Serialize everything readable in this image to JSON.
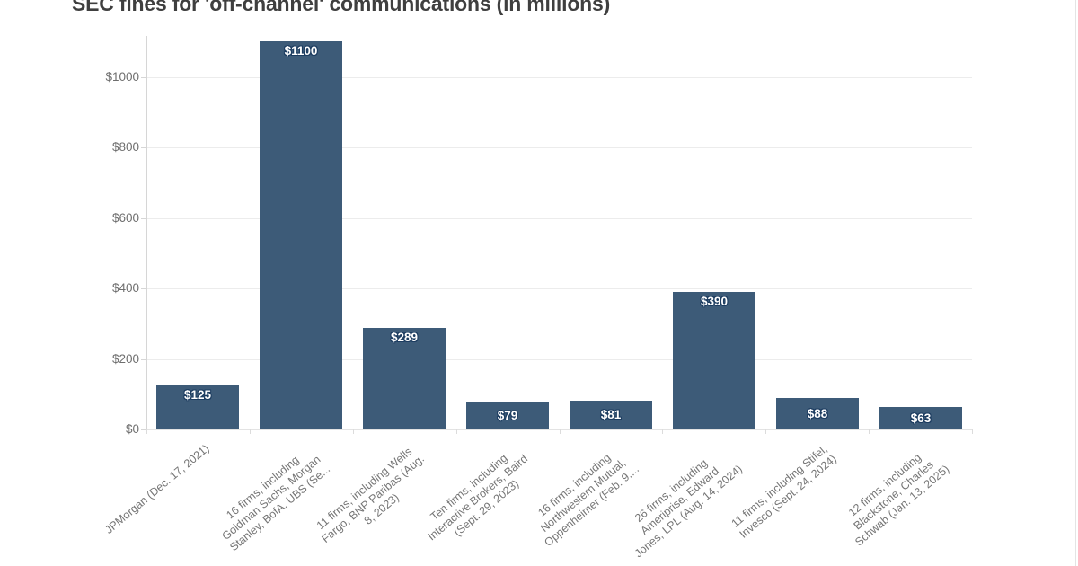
{
  "title": "SEC fines for 'off-channel' communications (in millions)",
  "chart_data": {
    "type": "bar",
    "title": "SEC fines for 'off-channel' communications (in millions)",
    "categories": [
      "JPMorgan (Dec. 17, 2021)",
      "16 firms, including Goldman Sachs, Morgan Stanley, BofA, UBS (Se...",
      "11 firms, including Wells Fargo, BNP Paribas (Aug. 8, 2023)",
      "Ten firms, including Interactive Brokers, Baird (Sept. 29, 2023)",
      "16 firms, including Northwestern Mutual, Oppenheimer (Feb. 9,...",
      "26 firms, including Ameriprise, Edward Jones, LPL (Aug. 14, 2024)",
      "11 firms, including Stifel, Invesco (Sept. 24, 2024)",
      "12 firms, including Blackstone, Charles Schwab (Jan. 13, 2025)"
    ],
    "category_lines": [
      [
        "JPMorgan (Dec. 17, 2021)"
      ],
      [
        "16 firms, including",
        "Goldman Sachs, Morgan",
        "Stanley, BofA, UBS (Se..."
      ],
      [
        "11 firms, including Wells",
        "Fargo, BNP Paribas (Aug.",
        "8, 2023)"
      ],
      [
        "Ten firms, including",
        "Interactive Brokers, Baird",
        "(Sept. 29, 2023)"
      ],
      [
        "16 firms, including",
        "Northwestern Mutual,",
        "Oppenheimer (Feb. 9,..."
      ],
      [
        "26 firms, including",
        "Ameriprise, Edward",
        "Jones, LPL (Aug. 14, 2024)"
      ],
      [
        "11 firms, including Stifel,",
        "Invesco (Sept. 24, 2024)"
      ],
      [
        "12 firms, including",
        "Blackstone, Charles",
        "Schwab (Jan. 13, 2025)"
      ]
    ],
    "values": [
      125,
      1100,
      289,
      79,
      81,
      390,
      88,
      63
    ],
    "bar_labels": [
      "$125",
      "$1100",
      "$289",
      "$79",
      "$81",
      "$390",
      "$88",
      "$63"
    ],
    "y_ticks": {
      "labels": [
        "$0",
        "$200",
        "$400",
        "$600",
        "$800",
        "$1000"
      ],
      "values": [
        0,
        200,
        400,
        600,
        800,
        1000
      ]
    },
    "xlabel": "",
    "ylabel": "",
    "ylim": [
      0,
      1100
    ],
    "grid": true,
    "legend_position": "none",
    "colors": {
      "bar_fill": "#3d5b78",
      "bar_label_text": "#ffffff",
      "bar_label_outline": "#1c3c60",
      "gridline": "#ececec",
      "axis_text": "#6e6e6e",
      "title_text": "#3f3f3f"
    }
  }
}
